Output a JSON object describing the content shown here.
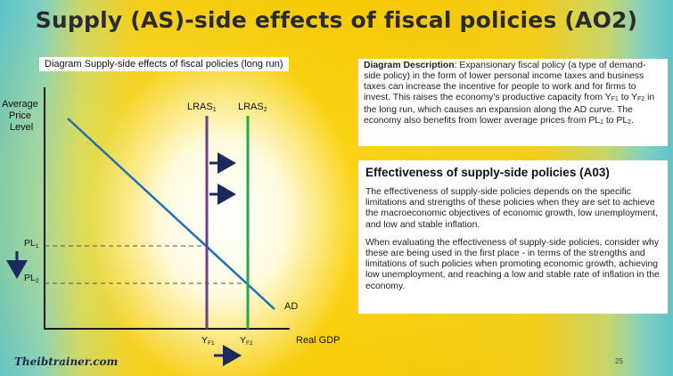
{
  "title": "Supply (AS)-side effects of fiscal policies (AO2)",
  "diagram_caption": "Diagram Supply-side effects of fiscal policies (long run)",
  "diagram": {
    "y_axis_label_lines": [
      "Average",
      "Price",
      "Level"
    ],
    "x_axis_label": "Real GDP",
    "curve_ad": "AD",
    "lras1": {
      "main": "LRAS",
      "sub": "1"
    },
    "lras2": {
      "main": "LRAS",
      "sub": "2"
    },
    "pl1": {
      "main": "PL",
      "sub": "1"
    },
    "pl2": {
      "main": "PL",
      "sub": "2"
    },
    "yf1": {
      "main": "Y",
      "sub": "F1"
    },
    "yf2": {
      "main": "Y",
      "sub": "F2"
    },
    "colors": {
      "lras1": "#6b3f8a",
      "lras2": "#22a94a",
      "ad": "#1f6fb5",
      "arrows": "#1b2a5c"
    }
  },
  "description": {
    "label": "Diagram Description",
    "t1": ": Expansionary fiscal policy (a type of demand-side policy) in the form of lower personal income taxes and business taxes can increase the incentive for people to work and for firms to invest. This raises the economy's productive capacity from Y",
    "s1": "F1",
    "t2": " to Y",
    "s2": "F2",
    "t3": " in the long run, which causes an expansion along the AD curve. The economy also benefits from lower average prices from PL",
    "s3": "1",
    "t4": " to PL",
    "s4": "2",
    "t5": "."
  },
  "effectiveness": {
    "heading": "Effectiveness of supply-side policies (A03)",
    "p1": "The effectiveness of supply-side policies depends on the specific limitations and strengths of these policies when they are set to achieve the macroeconomic objectives of economic growth, low unemployment, and low and stable inflation.",
    "p2": "When evaluating the effectiveness of supply-side policies, consider why these are being used in the first place - in terms of the strengths and limitations of such policies when promoting economic growth, achieving low unemployment, and reaching a low and stable rate of inflation in the economy."
  },
  "footer": {
    "logo": "Theibtrainer.com",
    "page_number": "25"
  }
}
